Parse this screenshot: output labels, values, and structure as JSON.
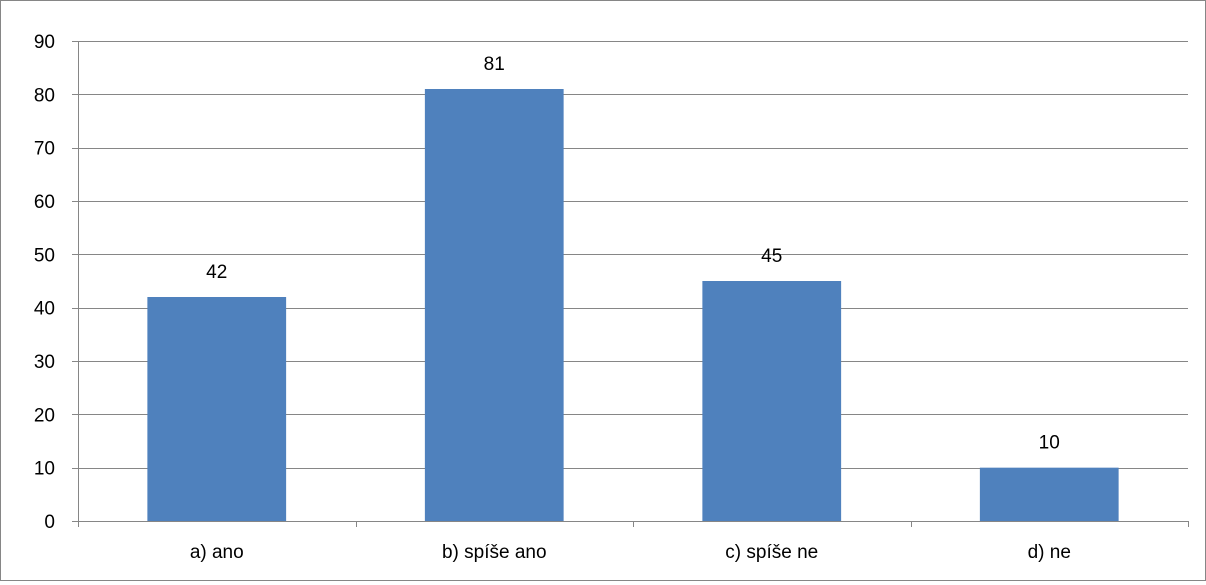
{
  "chart_data": {
    "type": "bar",
    "categories": [
      "a) ano",
      "b) spíše ano",
      "c) spíše ne",
      "d) ne"
    ],
    "values": [
      42,
      81,
      45,
      10
    ],
    "ylim": [
      0,
      90
    ],
    "yticks": [
      "0",
      "10",
      "20",
      "30",
      "40",
      "50",
      "60",
      "70",
      "80",
      "90"
    ],
    "title": "",
    "xlabel": "",
    "ylabel": "",
    "grid": true,
    "data_labels": true,
    "legend": "none",
    "colors": {
      "bar": "#4F81BD",
      "grid": "#868686",
      "axis": "#868686",
      "text": "#000000"
    }
  }
}
